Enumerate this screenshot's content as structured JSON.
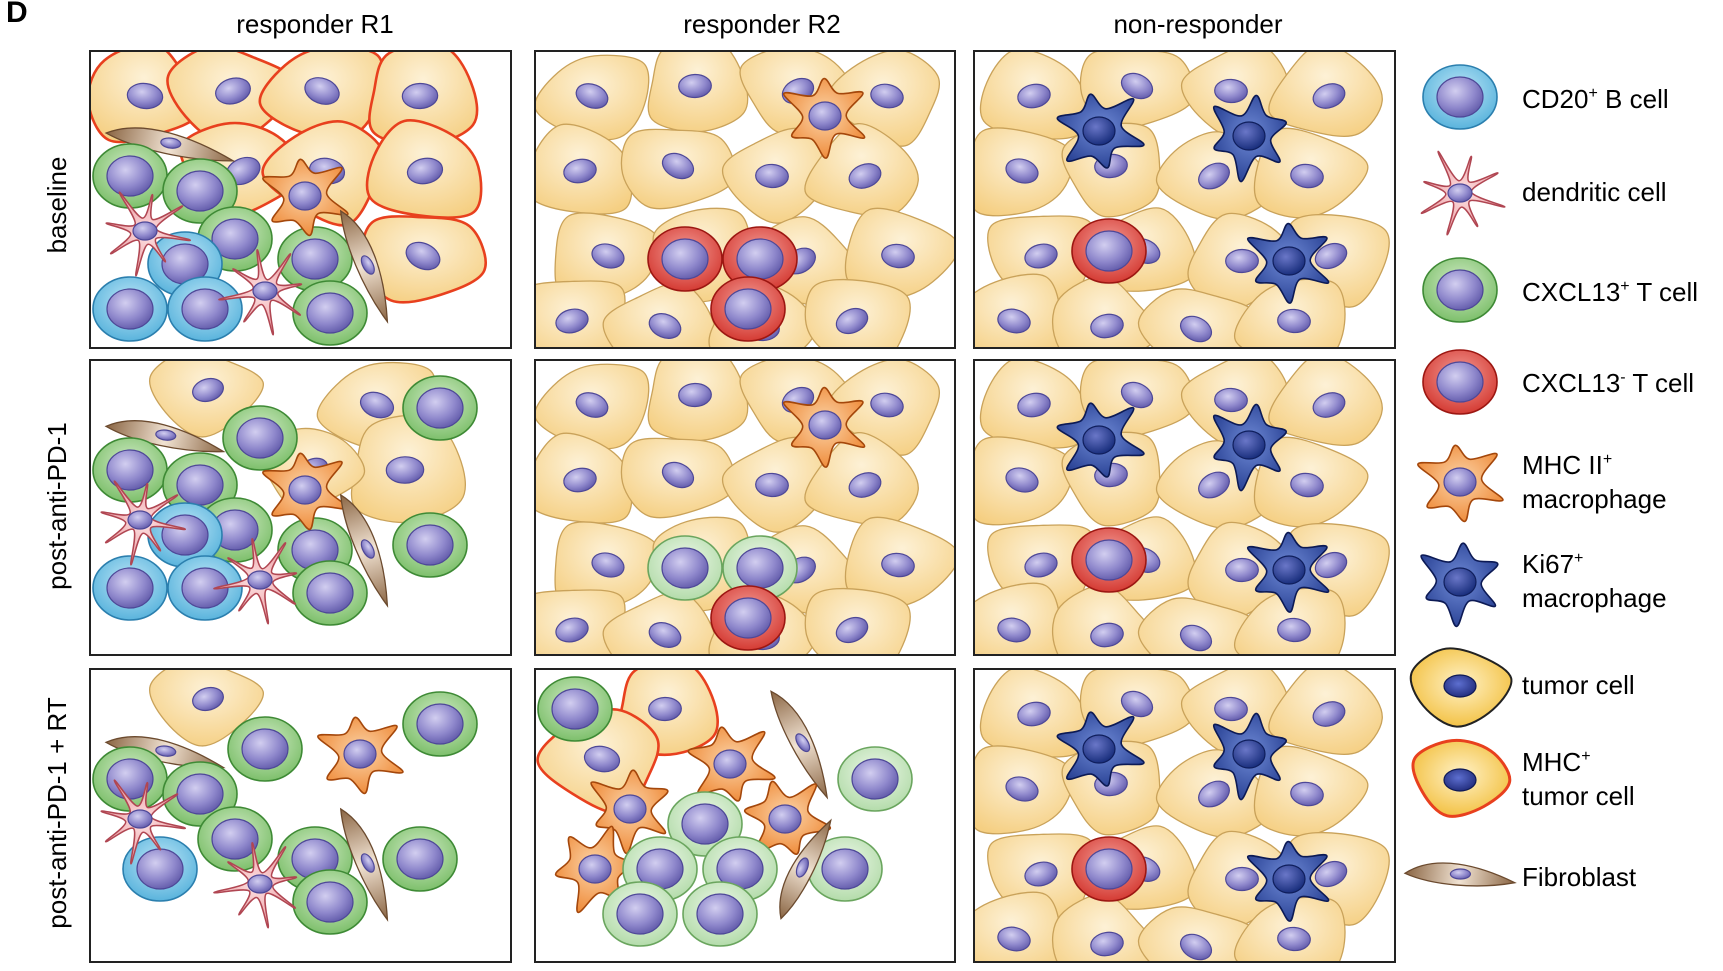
{
  "panel_letter": "D",
  "columns": [
    "responder R1",
    "responder R2",
    "non-responder"
  ],
  "rows": [
    "baseline",
    "post-anti-PD-1",
    "post-anti-PD-1 + RT"
  ],
  "legend": [
    {
      "key": "b_cell",
      "text": "CD20",
      "sup": "+",
      "rest": " B cell",
      "line2": ""
    },
    {
      "key": "dendritic",
      "text": "dendritic cell",
      "sup": "",
      "rest": "",
      "line2": ""
    },
    {
      "key": "cxcl13_pos",
      "text": "CXCL13",
      "sup": "+",
      "rest": " T cell",
      "line2": ""
    },
    {
      "key": "cxcl13_neg",
      "text": "CXCL13",
      "sup": "-",
      "rest": " T cell",
      "line2": ""
    },
    {
      "key": "mhc2_mac",
      "text": "MHC II",
      "sup": "+",
      "rest": "",
      "line2": "macrophage"
    },
    {
      "key": "ki67_mac",
      "text": "Ki67",
      "sup": "+",
      "rest": "",
      "line2": "macrophage"
    },
    {
      "key": "tumor",
      "text": "tumor cell",
      "sup": "",
      "rest": "",
      "line2": ""
    },
    {
      "key": "mhc_tumor",
      "text": "MHC",
      "sup": "+",
      "rest": "",
      "line2": "tumor cell"
    },
    {
      "key": "fibroblast",
      "text": "Fibroblast",
      "sup": "",
      "rest": "",
      "line2": ""
    }
  ],
  "colors": {
    "tumor_fill": "#f7d892",
    "tumor_edge": "#c9a25a",
    "mhc_tumor_edge": "#e8401e",
    "nucleus": "#8d86c9",
    "b_cell": "#5bb8e0",
    "cxcl13_pos": "#7cc06b",
    "cxcl13_pos_light": "#b9dfad",
    "cxcl13_neg": "#d8302a",
    "mhc2_mac": "#f08a34",
    "ki67_mac": "#27418f",
    "dendritic": "#f2a3a8",
    "fibroblast": "#a07a55"
  }
}
